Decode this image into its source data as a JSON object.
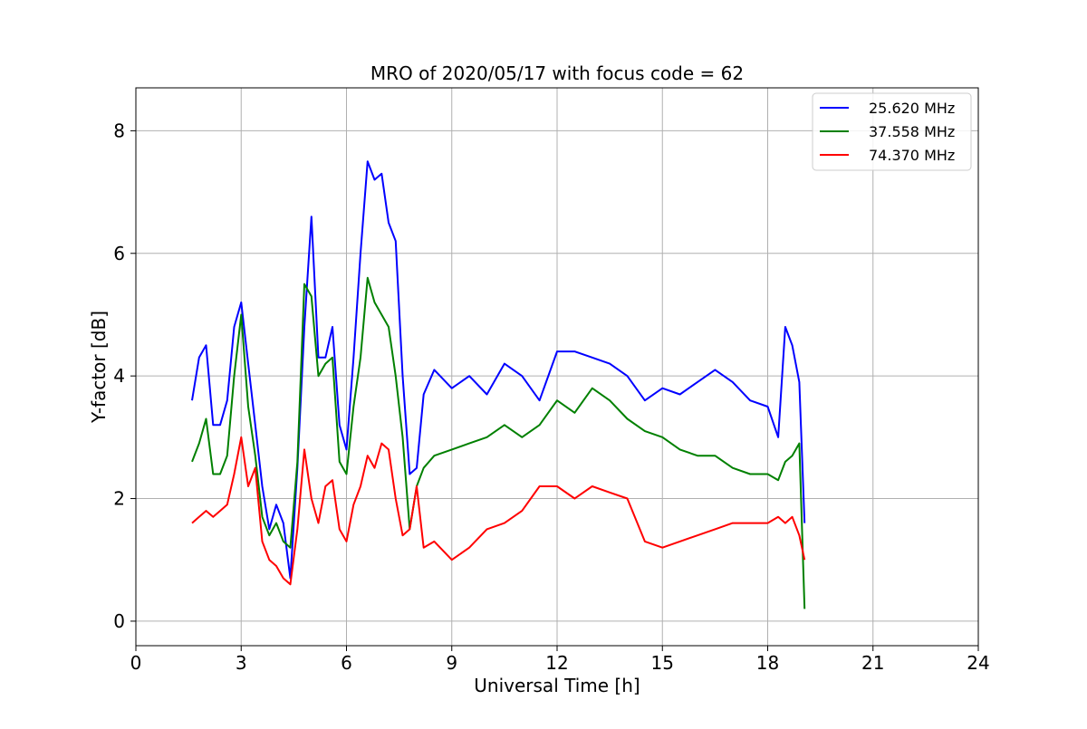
{
  "chart_data": {
    "type": "line",
    "title": "MRO of 2020/05/17 with focus code = 62",
    "xlabel": "Universal Time [h]",
    "ylabel": "Y-factor [dB]",
    "xlim": [
      0,
      24
    ],
    "ylim": [
      -0.4,
      8.7
    ],
    "xticks": [
      0,
      3,
      6,
      9,
      12,
      15,
      18,
      21,
      24
    ],
    "yticks": [
      0,
      2,
      4,
      6,
      8
    ],
    "grid": true,
    "legend_position": "top-right",
    "series": [
      {
        "name": "25.620 MHz",
        "color": "#0000ff",
        "x": [
          1.6,
          1.8,
          2.0,
          2.2,
          2.4,
          2.6,
          2.8,
          3.0,
          3.2,
          3.4,
          3.6,
          3.8,
          4.0,
          4.2,
          4.4,
          4.6,
          4.8,
          5.0,
          5.2,
          5.4,
          5.6,
          5.8,
          6.0,
          6.2,
          6.4,
          6.6,
          6.8,
          7.0,
          7.2,
          7.4,
          7.6,
          7.8,
          8.0,
          8.2,
          8.5,
          9.0,
          9.5,
          10.0,
          10.5,
          11.0,
          11.5,
          12.0,
          12.5,
          13.0,
          13.5,
          14.0,
          14.5,
          15.0,
          15.5,
          16.0,
          16.5,
          17.0,
          17.5,
          18.0,
          18.3,
          18.5,
          18.7,
          18.9,
          19.05
        ],
        "y": [
          3.6,
          4.3,
          4.5,
          3.2,
          3.2,
          3.6,
          4.8,
          5.2,
          4.2,
          3.2,
          2.2,
          1.5,
          1.9,
          1.6,
          0.7,
          2.5,
          4.8,
          6.6,
          4.3,
          4.3,
          4.8,
          3.2,
          2.8,
          4.3,
          6.0,
          7.5,
          7.2,
          7.3,
          6.5,
          6.2,
          4.0,
          2.4,
          2.5,
          3.7,
          4.1,
          3.8,
          4.0,
          3.7,
          4.2,
          4.0,
          3.6,
          4.4,
          4.4,
          4.3,
          4.2,
          4.0,
          3.6,
          3.8,
          3.7,
          3.9,
          4.1,
          3.9,
          3.6,
          3.5,
          3.0,
          4.8,
          4.5,
          3.9,
          1.6
        ]
      },
      {
        "name": "37.558 MHz",
        "color": "#008000",
        "x": [
          1.6,
          1.8,
          2.0,
          2.2,
          2.4,
          2.6,
          2.8,
          3.0,
          3.2,
          3.4,
          3.6,
          3.8,
          4.0,
          4.2,
          4.4,
          4.6,
          4.8,
          5.0,
          5.2,
          5.4,
          5.6,
          5.8,
          6.0,
          6.2,
          6.4,
          6.6,
          6.8,
          7.0,
          7.2,
          7.4,
          7.6,
          7.8,
          8.0,
          8.2,
          8.5,
          9.0,
          9.5,
          10.0,
          10.5,
          11.0,
          11.5,
          12.0,
          12.5,
          13.0,
          13.5,
          14.0,
          14.5,
          15.0,
          15.5,
          16.0,
          16.5,
          17.0,
          17.5,
          18.0,
          18.3,
          18.5,
          18.7,
          18.9,
          19.05
        ],
        "y": [
          2.6,
          2.9,
          3.3,
          2.4,
          2.4,
          2.7,
          4.0,
          5.0,
          3.5,
          2.7,
          1.7,
          1.4,
          1.6,
          1.3,
          1.2,
          2.6,
          5.5,
          5.3,
          4.0,
          4.2,
          4.3,
          2.6,
          2.4,
          3.5,
          4.3,
          5.6,
          5.2,
          5.0,
          4.8,
          4.0,
          3.0,
          1.5,
          2.2,
          2.5,
          2.7,
          2.8,
          2.9,
          3.0,
          3.2,
          3.0,
          3.2,
          3.6,
          3.4,
          3.8,
          3.6,
          3.3,
          3.1,
          3.0,
          2.8,
          2.7,
          2.7,
          2.5,
          2.4,
          2.4,
          2.3,
          2.6,
          2.7,
          2.9,
          0.2
        ]
      },
      {
        "name": "74.370 MHz",
        "color": "#ff0000",
        "x": [
          1.6,
          1.8,
          2.0,
          2.2,
          2.4,
          2.6,
          2.8,
          3.0,
          3.2,
          3.4,
          3.6,
          3.8,
          4.0,
          4.2,
          4.4,
          4.6,
          4.8,
          5.0,
          5.2,
          5.4,
          5.6,
          5.8,
          6.0,
          6.2,
          6.4,
          6.6,
          6.8,
          7.0,
          7.2,
          7.4,
          7.6,
          7.8,
          8.0,
          8.2,
          8.5,
          9.0,
          9.5,
          10.0,
          10.5,
          11.0,
          11.5,
          12.0,
          12.5,
          13.0,
          13.5,
          14.0,
          14.5,
          15.0,
          15.5,
          16.0,
          16.5,
          17.0,
          17.5,
          18.0,
          18.3,
          18.5,
          18.7,
          18.9,
          19.05
        ],
        "y": [
          1.6,
          1.7,
          1.8,
          1.7,
          1.8,
          1.9,
          2.4,
          3.0,
          2.2,
          2.5,
          1.3,
          1.0,
          0.9,
          0.7,
          0.6,
          1.5,
          2.8,
          2.0,
          1.6,
          2.2,
          2.3,
          1.5,
          1.3,
          1.9,
          2.2,
          2.7,
          2.5,
          2.9,
          2.8,
          2.0,
          1.4,
          1.5,
          2.2,
          1.2,
          1.3,
          1.0,
          1.2,
          1.5,
          1.6,
          1.8,
          2.2,
          2.2,
          2.0,
          2.2,
          2.1,
          2.0,
          1.3,
          1.2,
          1.3,
          1.4,
          1.5,
          1.6,
          1.6,
          1.6,
          1.7,
          1.6,
          1.7,
          1.4,
          1.0
        ]
      }
    ]
  }
}
